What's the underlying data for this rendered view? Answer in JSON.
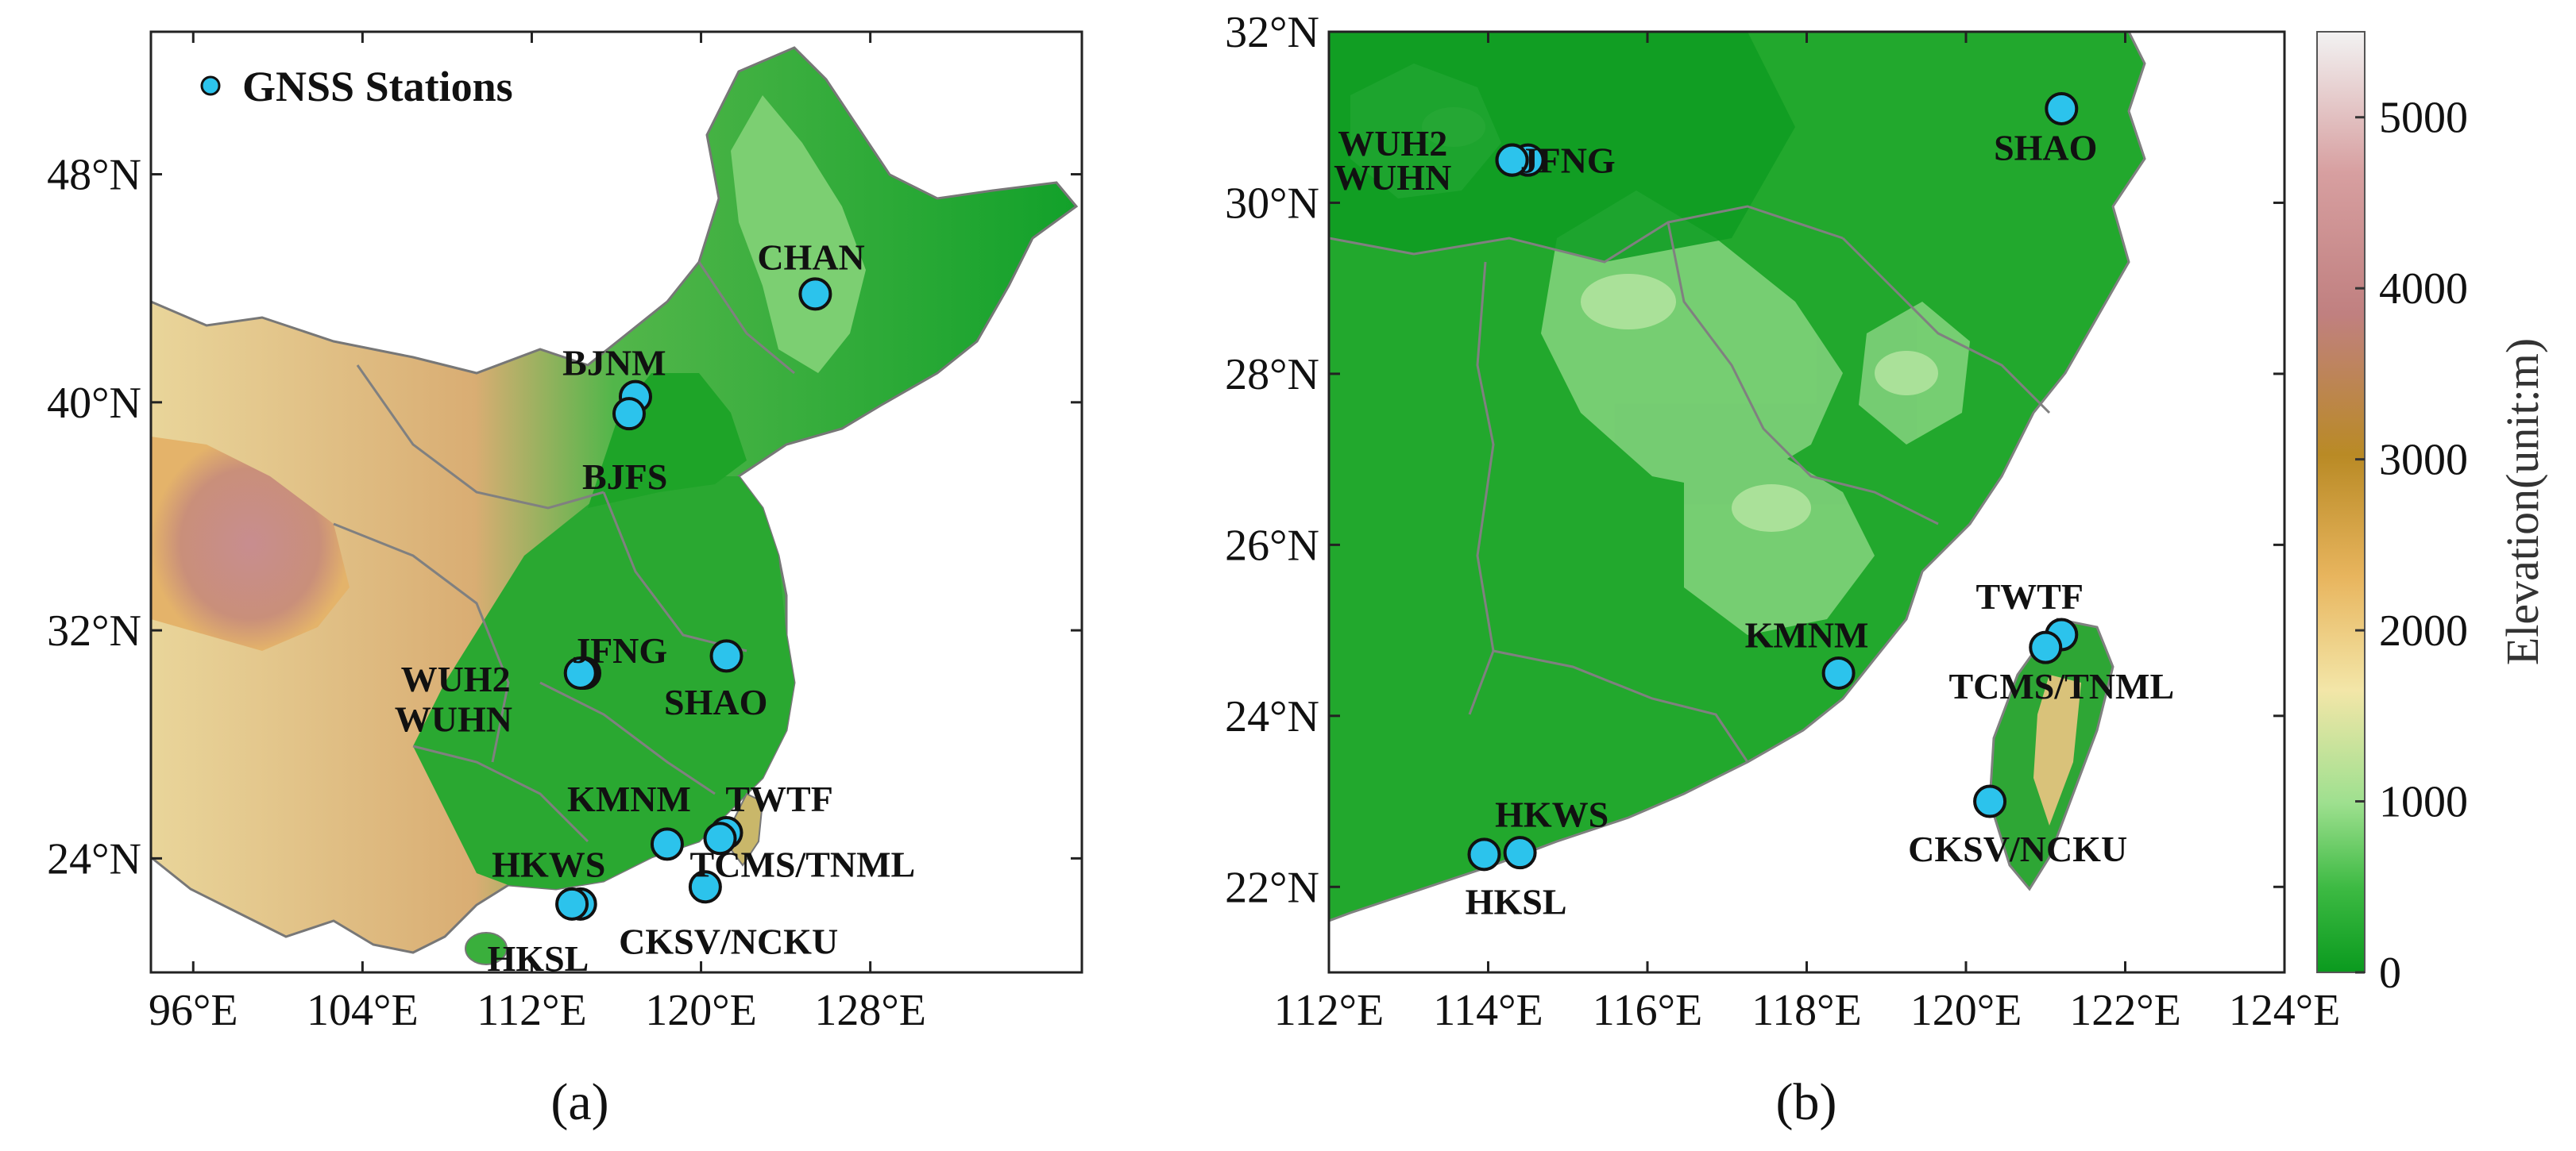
{
  "legend": {
    "label": "GNSS Stations",
    "marker_color": "#2cc3ec"
  },
  "panel_a": {
    "label": "(a)",
    "lon_range": [
      94,
      138
    ],
    "lat_range": [
      20,
      53
    ],
    "x_ticks": [
      {
        "value": 96,
        "text": "96°E"
      },
      {
        "value": 104,
        "text": "104°E"
      },
      {
        "value": 112,
        "text": "112°E"
      },
      {
        "value": 120,
        "text": "120°E"
      },
      {
        "value": 128,
        "text": "128°E"
      }
    ],
    "y_ticks": [
      {
        "value": 24,
        "text": "24°N"
      },
      {
        "value": 32,
        "text": "32°N"
      },
      {
        "value": 40,
        "text": "40°N"
      },
      {
        "value": 48,
        "text": "48°N"
      }
    ],
    "stations": [
      {
        "lon": 125.4,
        "lat": 43.8,
        "text": "CHAN",
        "anchor": "middle",
        "dlon": -0.2,
        "dlat": 1.3
      },
      {
        "lon": 116.9,
        "lat": 40.2,
        "text": "BJNM",
        "anchor": "middle",
        "dlon": -1.0,
        "dlat": 1.2
      },
      {
        "lon": 116.6,
        "lat": 39.6,
        "text": "BJFS",
        "anchor": "middle",
        "dlon": -0.2,
        "dlat": -2.2
      },
      {
        "lon": 114.5,
        "lat": 30.5,
        "text": "JFNG",
        "anchor": "start",
        "dlon": -0.6,
        "dlat": 0.8
      },
      {
        "lon": 114.4,
        "lat": 30.5,
        "text": "WUH2",
        "anchor": "middle",
        "dlon": -6.0,
        "dlat": -0.2
      },
      {
        "lon": 114.3,
        "lat": 30.5,
        "text": "WUHN",
        "anchor": "middle",
        "dlon": -6.0,
        "dlat": -1.6
      },
      {
        "lon": 121.2,
        "lat": 31.1,
        "text": "SHAO",
        "anchor": "middle",
        "dlon": -0.5,
        "dlat": -1.6
      },
      {
        "lon": 118.4,
        "lat": 24.5,
        "text": "KMNM",
        "anchor": "middle",
        "dlon": -1.8,
        "dlat": 1.6
      },
      {
        "lon": 121.2,
        "lat": 24.9,
        "text": "TWTF",
        "anchor": "middle",
        "dlon": 2.5,
        "dlat": 1.2
      },
      {
        "lon": 120.9,
        "lat": 24.7,
        "text": "TCMS/TNML",
        "anchor": "middle",
        "dlon": 3.9,
        "dlat": -0.9
      },
      {
        "lon": 120.2,
        "lat": 23.0,
        "text": "CKSV/NCKU",
        "anchor": "middle",
        "dlon": 1.1,
        "dlat": -1.9
      },
      {
        "lon": 114.3,
        "lat": 22.4,
        "text": "HKWS",
        "anchor": "middle",
        "dlon": -1.5,
        "dlat": 1.4
      },
      {
        "lon": 113.9,
        "lat": 22.4,
        "text": "HKSL",
        "anchor": "middle",
        "dlon": -1.6,
        "dlat": -1.9
      }
    ]
  },
  "panel_b": {
    "label": "(b)",
    "lon_range": [
      112,
      124
    ],
    "lat_range": [
      21,
      32
    ],
    "x_ticks": [
      {
        "value": 112,
        "text": "112°E"
      },
      {
        "value": 114,
        "text": "114°E"
      },
      {
        "value": 116,
        "text": "116°E"
      },
      {
        "value": 118,
        "text": "118°E"
      },
      {
        "value": 120,
        "text": "120°E"
      },
      {
        "value": 122,
        "text": "122°E"
      },
      {
        "value": 124,
        "text": "124°E"
      }
    ],
    "y_ticks": [
      {
        "value": 22,
        "text": "22°N"
      },
      {
        "value": 24,
        "text": "24°N"
      },
      {
        "value": 26,
        "text": "26°N"
      },
      {
        "value": 28,
        "text": "28°N"
      },
      {
        "value": 30,
        "text": "30°N"
      },
      {
        "value": 32,
        "text": "32°N"
      }
    ],
    "stations": [
      {
        "lon": 114.3,
        "lat": 30.5,
        "text": "",
        "anchor": "middle",
        "dlon": 0,
        "dlat": 0
      },
      {
        "lon": 114.5,
        "lat": 30.5,
        "text": "JFNG",
        "anchor": "start",
        "dlon": -0.1,
        "dlat": 0.0
      },
      {
        "lon": 114.3,
        "lat": 30.5,
        "text": "WUH2",
        "anchor": "middle",
        "dlon": -1.5,
        "dlat": 0.2
      },
      {
        "lon": 114.3,
        "lat": 30.5,
        "text": "WUHN",
        "anchor": "middle",
        "dlon": -1.5,
        "dlat": -0.2
      },
      {
        "lon": 121.2,
        "lat": 31.1,
        "text": "SHAO",
        "anchor": "middle",
        "dlon": -0.2,
        "dlat": -0.45
      },
      {
        "lon": 118.4,
        "lat": 24.5,
        "text": "KMNM",
        "anchor": "middle",
        "dlon": -0.4,
        "dlat": 0.45
      },
      {
        "lon": 121.2,
        "lat": 24.95,
        "text": "TWTF",
        "anchor": "middle",
        "dlon": -0.4,
        "dlat": 0.45
      },
      {
        "lon": 121.0,
        "lat": 24.8,
        "text": "TCMS/TNML",
        "anchor": "middle",
        "dlon": 0.2,
        "dlat": -0.45
      },
      {
        "lon": 120.3,
        "lat": 23.0,
        "text": "CKSV/NCKU",
        "anchor": "middle",
        "dlon": 0.35,
        "dlat": -0.55
      },
      {
        "lon": 114.4,
        "lat": 22.4,
        "text": "HKWS",
        "anchor": "middle",
        "dlon": 0.4,
        "dlat": 0.45
      },
      {
        "lon": 113.95,
        "lat": 22.38,
        "text": "HKSL",
        "anchor": "middle",
        "dlon": 0.4,
        "dlat": -0.55
      }
    ]
  },
  "colorbar": {
    "label": "Elevation(unit:m)",
    "range": [
      0,
      5500
    ],
    "ticks": [
      {
        "value": 0,
        "text": "0"
      },
      {
        "value": 1000,
        "text": "1000"
      },
      {
        "value": 2000,
        "text": "2000"
      },
      {
        "value": 3000,
        "text": "3000"
      },
      {
        "value": 4000,
        "text": "4000"
      },
      {
        "value": 5000,
        "text": "5000"
      }
    ],
    "colors": [
      "#0a9a1e",
      "#3dba43",
      "#9ee08f",
      "#f3e6a8",
      "#e8b55e",
      "#b98a25",
      "#c08080",
      "#d79fa0",
      "#f2f2f2"
    ]
  }
}
